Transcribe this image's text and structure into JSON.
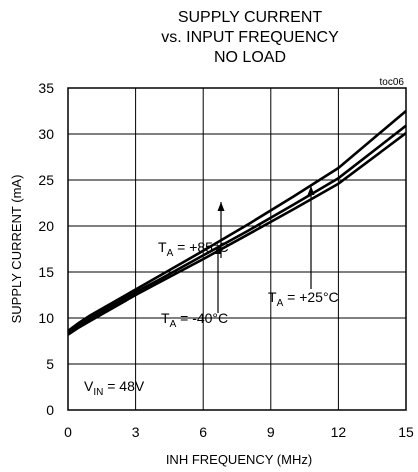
{
  "chart_data": {
    "type": "line",
    "title": [
      "SUPPLY CURRENT",
      "vs. INPUT FREQUENCY",
      "NO LOAD"
    ],
    "tag": "toc06",
    "xlabel": "INH FREQUENCY (MHz)",
    "ylabel": "SUPPLY CURRENT (mA)",
    "xlim": [
      0,
      15
    ],
    "ylim": [
      0,
      35
    ],
    "xticks": [
      0,
      3,
      6,
      9,
      12,
      15
    ],
    "yticks": [
      0,
      5,
      10,
      15,
      20,
      25,
      30,
      35
    ],
    "grid": true,
    "series": [
      {
        "name": "+85°C",
        "x": [
          0,
          0.5,
          1,
          2,
          3,
          4,
          6,
          8,
          10,
          12,
          15
        ],
        "y": [
          8.6,
          9.5,
          10.3,
          11.7,
          13.1,
          14.5,
          17.3,
          20.2,
          23.2,
          26.3,
          32.5
        ]
      },
      {
        "name": "+25°C",
        "x": [
          0,
          0.5,
          1,
          2,
          3,
          4,
          6,
          8,
          10,
          12,
          15
        ],
        "y": [
          8.4,
          9.2,
          10.0,
          11.4,
          12.8,
          14.1,
          16.8,
          19.5,
          22.3,
          25.2,
          30.9
        ]
      },
      {
        "name": "-40°C",
        "x": [
          0,
          0.5,
          1,
          2,
          3,
          4,
          6,
          8,
          10,
          12,
          15
        ],
        "y": [
          8.2,
          9.0,
          9.7,
          11.1,
          12.5,
          13.8,
          16.4,
          19.1,
          21.8,
          24.6,
          30.1
        ]
      }
    ],
    "annotations": [
      {
        "prefix": "T",
        "sub": "A",
        "text": " = +85°C"
      },
      {
        "prefix": "T",
        "sub": "A",
        "text": " = +25°C"
      },
      {
        "prefix": "T",
        "sub": "A",
        "text": " = -40°C"
      },
      {
        "prefix": "V",
        "sub": "IN",
        "text": " = 48V"
      }
    ]
  }
}
